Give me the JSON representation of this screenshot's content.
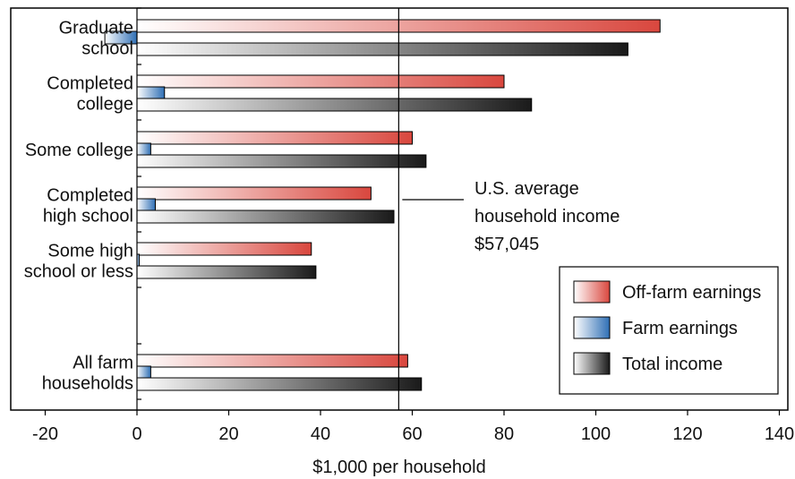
{
  "chart_data": {
    "type": "bar",
    "orientation": "horizontal",
    "categories": [
      [
        "Graduate",
        "school"
      ],
      [
        "Completed",
        "college"
      ],
      [
        "Some college"
      ],
      [
        "Completed",
        "high school"
      ],
      [
        "Some high",
        "school or less"
      ],
      [
        "All farm",
        "households"
      ]
    ],
    "series": [
      {
        "name": "Off-farm earnings",
        "values": [
          114,
          80,
          60,
          51,
          38,
          59
        ],
        "color": "#d9473e"
      },
      {
        "name": "Farm earnings",
        "values": [
          -7,
          6,
          3,
          4,
          0.5,
          3
        ],
        "color": "#2f6fb5"
      },
      {
        "name": "Total income",
        "values": [
          107,
          86,
          63,
          56,
          39,
          62
        ],
        "color": "#1a1a1a"
      }
    ],
    "xlabel": "$1,000 per household",
    "ylabel": "",
    "xlim": [
      -20,
      140
    ],
    "xticks": [
      -20,
      0,
      20,
      40,
      60,
      80,
      100,
      120,
      140
    ],
    "reference_line": {
      "value": 57.045,
      "label": [
        "U.S. average",
        "household income",
        "$57,045"
      ]
    },
    "legend": {
      "placement": "bottom-right"
    },
    "grid": false
  }
}
